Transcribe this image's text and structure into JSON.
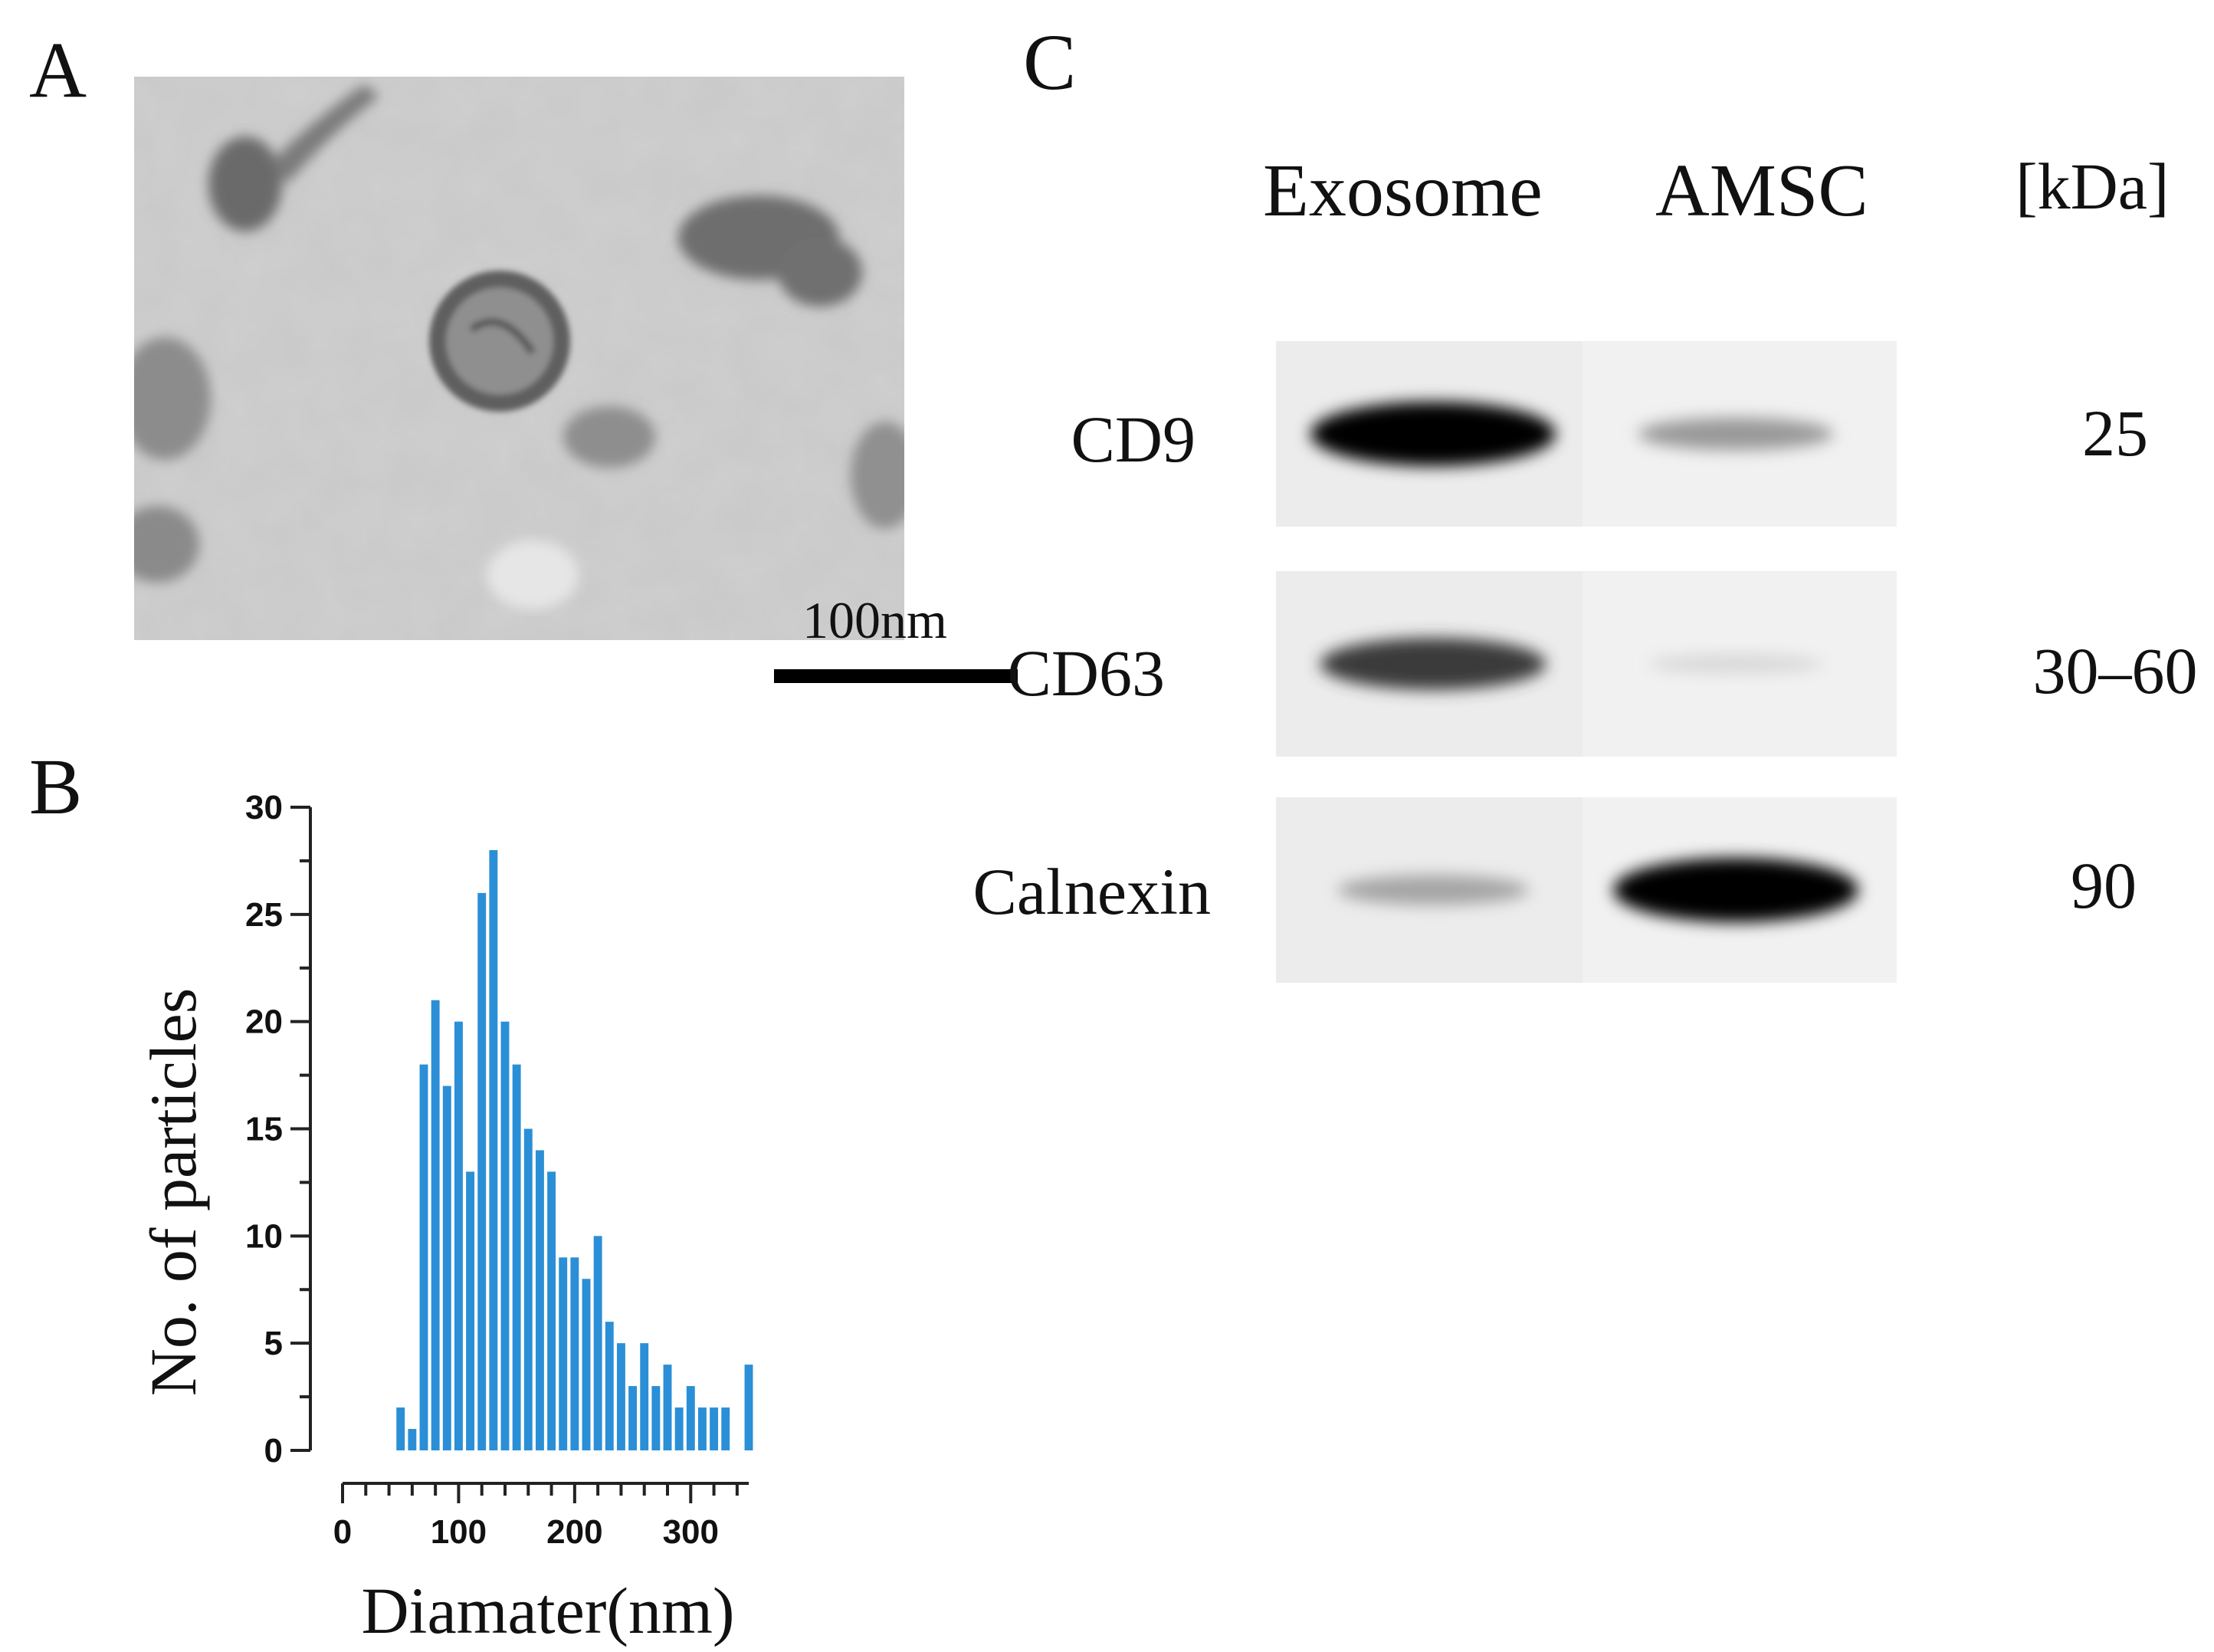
{
  "panels": {
    "a": {
      "letter": "A",
      "scale_bar_label": "100nm"
    },
    "b": {
      "letter": "B"
    },
    "c": {
      "letter": "C",
      "columns": [
        "Exosome",
        "AMSC",
        "[kDa]"
      ],
      "rows": [
        {
          "label": "CD9",
          "kda": "25",
          "exosome_intensity": 1.0,
          "amsc_intensity": 0.35
        },
        {
          "label": "CD63",
          "kda": "30–60",
          "exosome_intensity": 0.75,
          "amsc_intensity": 0.08
        },
        {
          "label": "Calnexin",
          "kda": "90",
          "exosome_intensity": 0.3,
          "amsc_intensity": 1.0
        }
      ]
    }
  },
  "chart_data": {
    "type": "bar",
    "xlabel": "Diamater(nm)",
    "ylabel": "No. of particles",
    "xlim": [
      0,
      350
    ],
    "ylim": [
      0,
      30
    ],
    "xticks": [
      0,
      100,
      200,
      300
    ],
    "yticks": [
      0,
      5,
      10,
      15,
      20,
      25,
      30
    ],
    "bin_width": 10,
    "x": [
      50,
      60,
      70,
      80,
      90,
      100,
      110,
      120,
      130,
      140,
      150,
      160,
      170,
      180,
      190,
      200,
      210,
      220,
      230,
      240,
      250,
      260,
      270,
      280,
      290,
      300,
      310,
      320,
      330,
      340,
      350
    ],
    "values": [
      2,
      1,
      18,
      21,
      17,
      20,
      13,
      26,
      28,
      20,
      18,
      15,
      14,
      13,
      9,
      9,
      8,
      10,
      6,
      5,
      3,
      5,
      3,
      4,
      2,
      3,
      2,
      2,
      2,
      0,
      4
    ],
    "color": "#2a8fd6"
  }
}
